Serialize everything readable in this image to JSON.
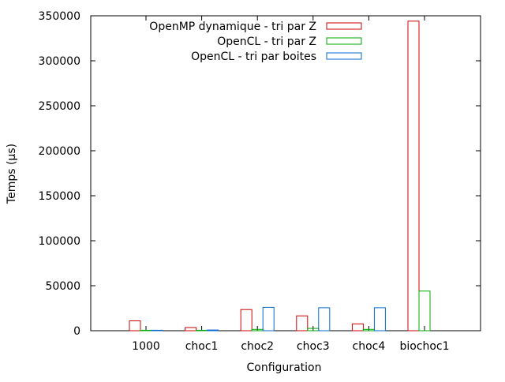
{
  "chart_data": {
    "type": "bar",
    "xlabel": "Configuration",
    "ylabel": "Temps (µs)",
    "ylim": [
      0,
      350000
    ],
    "yticks": [
      0,
      50000,
      100000,
      150000,
      200000,
      250000,
      300000,
      350000
    ],
    "categories": [
      "1000",
      "choc1",
      "choc2",
      "choc3",
      "choc4",
      "biochoc1"
    ],
    "legend_position": "top-right",
    "grid": false,
    "series": [
      {
        "name": "OpenMP dynamique - tri par Z",
        "color": "#cc0000",
        "values": [
          11000,
          3500,
          23500,
          16500,
          7500,
          344000
        ]
      },
      {
        "name": "OpenCL - tri par Z",
        "color": "#00aa00",
        "values": [
          500,
          500,
          1500,
          2500,
          1500,
          44000
        ]
      },
      {
        "name": "OpenCL - tri par boites",
        "color": "#0066cc",
        "values": [
          500,
          800,
          26000,
          25500,
          25500,
          null
        ]
      }
    ]
  }
}
